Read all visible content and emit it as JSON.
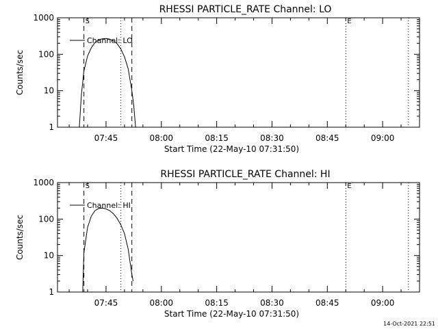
{
  "timestamp": "14-Oct-2021 22:51",
  "chart_data": [
    {
      "type": "line",
      "title": "RHESSI PARTICLE_RATE Channel: LO",
      "xlabel": "Start Time (22-May-10 07:31:50)",
      "ylabel": "Counts/sec",
      "yscale": "log",
      "ylim": [
        1,
        1000
      ],
      "xlim": [
        "07:31:50",
        "09:10:00"
      ],
      "x_ticks": [
        "07:45",
        "08:00",
        "08:15",
        "08:30",
        "08:45",
        "09:00"
      ],
      "y_ticks": [
        "1",
        "10",
        "100",
        "1000"
      ],
      "legend": {
        "placement": "top-left",
        "entries": [
          "Channel: LO"
        ]
      },
      "markers": [
        {
          "label": "S",
          "time": "07:39:00",
          "style": "dashed"
        },
        {
          "label": "",
          "time": "07:49:00",
          "style": "dotted"
        },
        {
          "label": "",
          "time": "07:52:00",
          "style": "dashed"
        },
        {
          "label": "E",
          "time": "08:50:00",
          "style": "dotted"
        },
        {
          "label": "",
          "time": "09:07:00",
          "style": "dotted"
        }
      ],
      "series": [
        {
          "name": "Channel: LO",
          "x": [
            "07:37:45",
            "07:38:20",
            "07:39:00",
            "07:40:00",
            "07:41:00",
            "07:42:00",
            "07:43:00",
            "07:44:00",
            "07:45:00",
            "07:46:00",
            "07:47:00",
            "07:48:00",
            "07:49:00",
            "07:50:00",
            "07:51:00",
            "07:52:00",
            "07:52:30",
            "07:53:00"
          ],
          "y": [
            1,
            8,
            35,
            90,
            150,
            210,
            250,
            265,
            270,
            260,
            235,
            195,
            140,
            85,
            40,
            10,
            4,
            1
          ]
        }
      ]
    },
    {
      "type": "line",
      "title": "RHESSI PARTICLE_RATE Channel: HI",
      "xlabel": "Start Time (22-May-10 07:31:50)",
      "ylabel": "Counts/sec",
      "yscale": "log",
      "ylim": [
        1,
        1000
      ],
      "xlim": [
        "07:31:50",
        "09:10:00"
      ],
      "x_ticks": [
        "07:45",
        "08:00",
        "08:15",
        "08:30",
        "08:45",
        "09:00"
      ],
      "y_ticks": [
        "1",
        "10",
        "100",
        "1000"
      ],
      "legend": {
        "placement": "top-left",
        "entries": [
          "Channel: HI"
        ]
      },
      "markers": [
        {
          "label": "S",
          "time": "07:39:00",
          "style": "dashed"
        },
        {
          "label": "",
          "time": "07:49:00",
          "style": "dotted"
        },
        {
          "label": "",
          "time": "07:52:00",
          "style": "dashed"
        },
        {
          "label": "E",
          "time": "08:50:00",
          "style": "dotted"
        },
        {
          "label": "",
          "time": "09:07:00",
          "style": "dotted"
        }
      ],
      "series": [
        {
          "name": "Channel: HI",
          "x": [
            "07:38:40",
            "07:39:00",
            "07:40:00",
            "07:41:00",
            "07:42:00",
            "07:43:00",
            "07:44:00",
            "07:45:00",
            "07:46:00",
            "07:47:00",
            "07:48:00",
            "07:49:00",
            "07:50:00",
            "07:51:00",
            "07:52:00",
            "07:52:20"
          ],
          "y": [
            1,
            12,
            60,
            120,
            170,
            195,
            200,
            190,
            170,
            140,
            105,
            70,
            40,
            15,
            3,
            2
          ]
        }
      ]
    }
  ]
}
